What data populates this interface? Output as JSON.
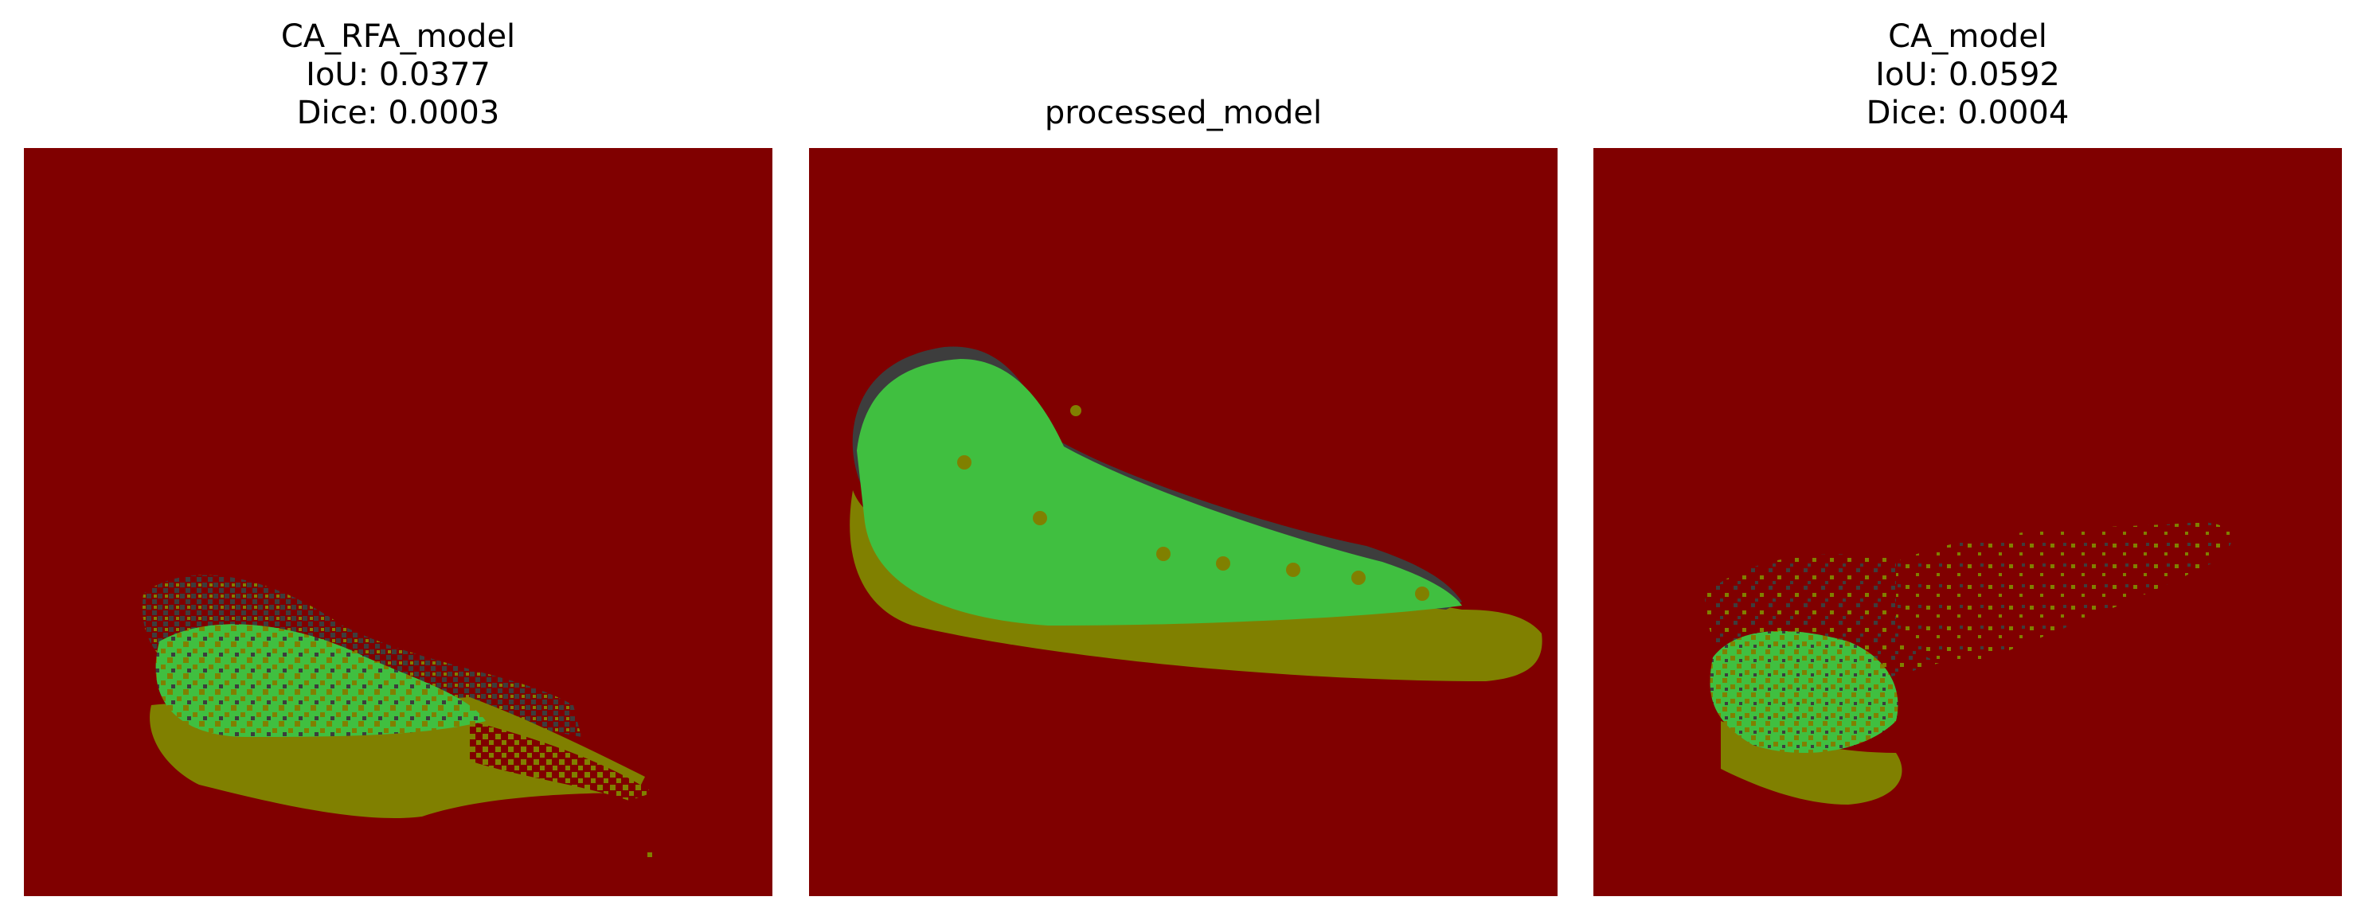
{
  "colors": {
    "background": "#800000",
    "false_negative": "#3d3d3d",
    "true_positive": "#40bf40",
    "false_positive": "#808000"
  },
  "panels": [
    {
      "title": "CA_RFA_model",
      "iou": "IoU: 0.0377",
      "dice": "Dice: 0.0003"
    },
    {
      "title": "processed_model",
      "iou": "",
      "dice": ""
    },
    {
      "title": "CA_model",
      "iou": "IoU: 0.0592",
      "dice": "Dice: 0.0004"
    }
  ]
}
